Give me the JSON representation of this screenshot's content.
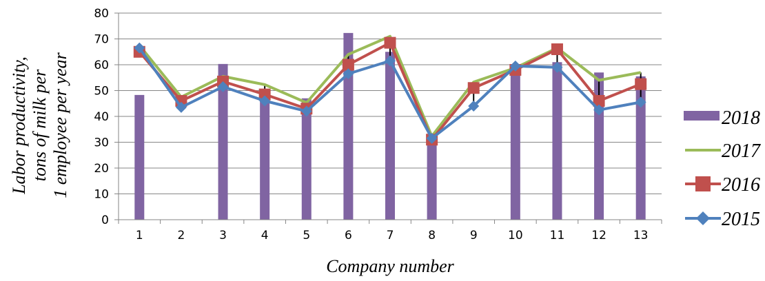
{
  "chart_data": {
    "type": "bar",
    "categories": [
      "1",
      "2",
      "3",
      "4",
      "5",
      "6",
      "7",
      "8",
      "9",
      "10",
      "11",
      "12",
      "13"
    ],
    "xlabel": "Company number",
    "ylabel_lines": [
      "Labor productivity,",
      "tons of milk per",
      "1 employee per year"
    ],
    "ylim": [
      0,
      80
    ],
    "yticks": [
      0,
      10,
      20,
      30,
      40,
      50,
      60,
      70,
      80
    ],
    "grid": true,
    "legend_position": "right",
    "series": [
      {
        "name": "2018",
        "kind": "bar",
        "color": "#8064A2",
        "values": [
          48.3,
          0,
          60.3,
          50.0,
          47.0,
          72.3,
          65.0,
          30.0,
          0,
          60.0,
          61.0,
          57.0,
          55.5
        ]
      },
      {
        "name": "2017",
        "kind": "line",
        "color": "#9BBB59",
        "values": [
          67.5,
          47.5,
          55.5,
          52.3,
          45.3,
          64.0,
          71.0,
          32.3,
          53.3,
          58.8,
          66.5,
          54.0,
          57.0
        ]
      },
      {
        "name": "2016",
        "kind": "line",
        "marker": "square",
        "color": "#C0504D",
        "values": [
          65.0,
          46.0,
          53.5,
          48.5,
          43.0,
          60.0,
          68.5,
          31.0,
          51.0,
          58.0,
          66.0,
          46.0,
          52.5
        ]
      },
      {
        "name": "2015",
        "kind": "line",
        "marker": "diamond",
        "color": "#4F81BD",
        "values": [
          66.5,
          43.5,
          51.5,
          46.0,
          42.0,
          56.5,
          61.5,
          31.5,
          44.0,
          59.5,
          59.0,
          42.5,
          45.5
        ]
      }
    ],
    "legend_order": [
      "2018",
      "2017",
      "2016",
      "2015"
    ]
  }
}
